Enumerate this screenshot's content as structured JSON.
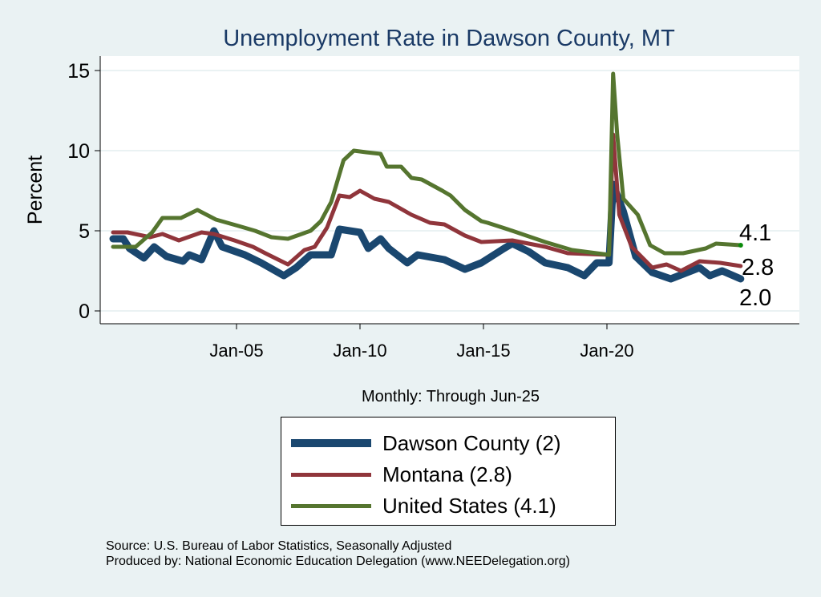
{
  "chart_data": {
    "type": "line",
    "title": "Unemployment Rate in Dawson  County, MT",
    "ylabel": "Percent",
    "xlabel": "Monthly: Through Jun-25",
    "ylim": [
      0,
      15
    ],
    "yticks": [
      0,
      5,
      10,
      15
    ],
    "xticks": [
      {
        "date": "2005-01",
        "label": "Jan-05"
      },
      {
        "date": "2010-01",
        "label": "Jan-10"
      },
      {
        "date": "2015-01",
        "label": "Jan-15"
      },
      {
        "date": "2020-01",
        "label": "Jan-20"
      }
    ],
    "xrange": [
      "2000-01",
      "2025-06"
    ],
    "grid": "horizontal",
    "legend_position": "bottom",
    "series": [
      {
        "name": "Dawson  County (2)",
        "color": "#1a476f",
        "end_label": "2.0",
        "points": [
          [
            "2000-01",
            4.5
          ],
          [
            "2000-06",
            4.5
          ],
          [
            "2000-09",
            3.9
          ],
          [
            "2001-04",
            3.3
          ],
          [
            "2001-09",
            4.0
          ],
          [
            "2002-03",
            3.4
          ],
          [
            "2002-11",
            3.1
          ],
          [
            "2003-02",
            3.5
          ],
          [
            "2003-08",
            3.2
          ],
          [
            "2004-02",
            5.0
          ],
          [
            "2004-06",
            4.0
          ],
          [
            "2005-05",
            3.5
          ],
          [
            "2006-01",
            3.0
          ],
          [
            "2006-12",
            2.2
          ],
          [
            "2007-06",
            2.7
          ],
          [
            "2008-01",
            3.5
          ],
          [
            "2008-11",
            3.5
          ],
          [
            "2009-03",
            5.1
          ],
          [
            "2010-01",
            4.9
          ],
          [
            "2010-05",
            3.9
          ],
          [
            "2010-11",
            4.5
          ],
          [
            "2011-03",
            3.9
          ],
          [
            "2011-12",
            3.0
          ],
          [
            "2012-05",
            3.5
          ],
          [
            "2013-06",
            3.2
          ],
          [
            "2014-04",
            2.6
          ],
          [
            "2014-12",
            3.0
          ],
          [
            "2015-11",
            3.9
          ],
          [
            "2016-03",
            4.2
          ],
          [
            "2016-11",
            3.7
          ],
          [
            "2017-07",
            3.0
          ],
          [
            "2018-06",
            2.7
          ],
          [
            "2019-02",
            2.2
          ],
          [
            "2019-08",
            3.0
          ],
          [
            "2020-02",
            3.0
          ],
          [
            "2020-04",
            7.9
          ],
          [
            "2020-09",
            6.2
          ],
          [
            "2021-03",
            3.4
          ],
          [
            "2021-11",
            2.4
          ],
          [
            "2022-08",
            2.0
          ],
          [
            "2023-10",
            2.7
          ],
          [
            "2024-03",
            2.2
          ],
          [
            "2024-09",
            2.5
          ],
          [
            "2025-06",
            2.0
          ]
        ]
      },
      {
        "name": "Montana (2.8)",
        "color": "#90353b",
        "end_label": "2.8",
        "points": [
          [
            "2000-01",
            4.9
          ],
          [
            "2000-08",
            4.9
          ],
          [
            "2001-07",
            4.6
          ],
          [
            "2002-01",
            4.8
          ],
          [
            "2002-09",
            4.4
          ],
          [
            "2003-08",
            4.9
          ],
          [
            "2004-02",
            4.8
          ],
          [
            "2004-12",
            4.4
          ],
          [
            "2005-09",
            4.0
          ],
          [
            "2006-03",
            3.6
          ],
          [
            "2007-02",
            2.9
          ],
          [
            "2007-10",
            3.8
          ],
          [
            "2008-03",
            4.0
          ],
          [
            "2008-09",
            5.2
          ],
          [
            "2009-03",
            7.2
          ],
          [
            "2009-08",
            7.1
          ],
          [
            "2010-01",
            7.5
          ],
          [
            "2010-08",
            7.0
          ],
          [
            "2011-03",
            6.8
          ],
          [
            "2012-02",
            6.0
          ],
          [
            "2012-11",
            5.5
          ],
          [
            "2013-06",
            5.4
          ],
          [
            "2014-04",
            4.7
          ],
          [
            "2014-12",
            4.3
          ],
          [
            "2016-03",
            4.4
          ],
          [
            "2017-07",
            4.0
          ],
          [
            "2018-06",
            3.6
          ],
          [
            "2020-02",
            3.5
          ],
          [
            "2020-04",
            11.0
          ],
          [
            "2020-07",
            6.0
          ],
          [
            "2021-01",
            4.0
          ],
          [
            "2021-11",
            2.7
          ],
          [
            "2022-06",
            2.9
          ],
          [
            "2023-01",
            2.5
          ],
          [
            "2023-10",
            3.1
          ],
          [
            "2024-08",
            3.0
          ],
          [
            "2025-06",
            2.8
          ]
        ]
      },
      {
        "name": "United States (4.1)",
        "color": "#55752f",
        "end_label": "4.1",
        "points": [
          [
            "2000-01",
            4.0
          ],
          [
            "2000-12",
            4.0
          ],
          [
            "2001-08",
            4.9
          ],
          [
            "2002-01",
            5.8
          ],
          [
            "2002-10",
            5.8
          ],
          [
            "2003-06",
            6.3
          ],
          [
            "2004-03",
            5.7
          ],
          [
            "2005-02",
            5.3
          ],
          [
            "2005-10",
            5.0
          ],
          [
            "2006-06",
            4.6
          ],
          [
            "2007-02",
            4.5
          ],
          [
            "2008-01",
            5.0
          ],
          [
            "2008-06",
            5.6
          ],
          [
            "2008-11",
            6.8
          ],
          [
            "2009-05",
            9.4
          ],
          [
            "2009-10",
            10.0
          ],
          [
            "2010-04",
            9.9
          ],
          [
            "2010-11",
            9.8
          ],
          [
            "2011-02",
            9.0
          ],
          [
            "2011-09",
            9.0
          ],
          [
            "2012-02",
            8.3
          ],
          [
            "2012-07",
            8.2
          ],
          [
            "2013-05",
            7.5
          ],
          [
            "2013-09",
            7.2
          ],
          [
            "2014-04",
            6.3
          ],
          [
            "2014-12",
            5.6
          ],
          [
            "2015-03",
            5.5
          ],
          [
            "2016-03",
            5.0
          ],
          [
            "2017-07",
            4.3
          ],
          [
            "2018-08",
            3.8
          ],
          [
            "2020-02",
            3.5
          ],
          [
            "2020-04",
            14.8
          ],
          [
            "2020-06",
            11.0
          ],
          [
            "2020-09",
            7.0
          ],
          [
            "2021-04",
            6.0
          ],
          [
            "2021-10",
            4.1
          ],
          [
            "2022-05",
            3.6
          ],
          [
            "2023-02",
            3.6
          ],
          [
            "2024-01",
            3.9
          ],
          [
            "2024-06",
            4.2
          ],
          [
            "2025-06",
            4.1
          ]
        ]
      }
    ]
  },
  "source": {
    "line1": "Source: U.S. Bureau of Labor Statistics, Seasonally Adjusted",
    "line2": "Produced by: National Economic Education Delegation (www.NEEDelegation.org)"
  }
}
